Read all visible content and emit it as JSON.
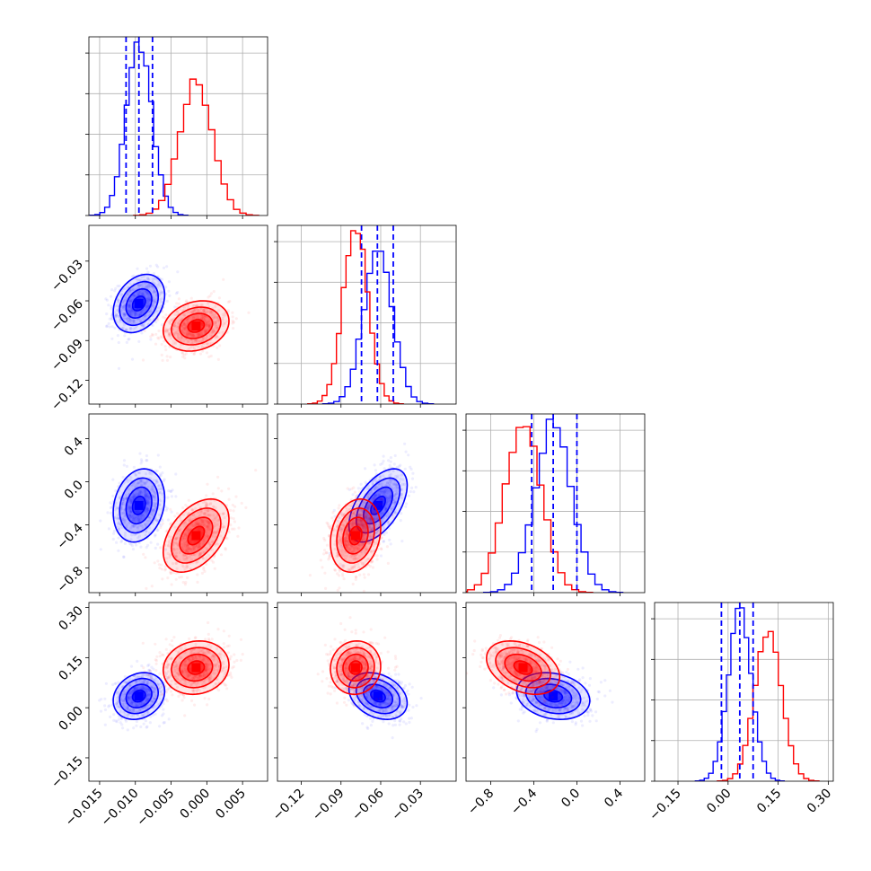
{
  "chart_data": {
    "type": "corner",
    "colors": {
      "series_a": "#0000ff",
      "series_b": "#ff0000"
    },
    "grid": true,
    "series": [
      {
        "color": "#0000ff",
        "means": [
          -0.0095,
          -0.062,
          -0.22,
          0.035
        ],
        "sds": [
          0.0018,
          0.011,
          0.17,
          0.035
        ]
      },
      {
        "color": "#ff0000",
        "means": [
          -0.0015,
          -0.079,
          -0.5,
          0.12
        ],
        "sds": [
          0.0023,
          0.0095,
          0.17,
          0.04
        ]
      }
    ],
    "correlations": {
      "series_a": {
        "1_0": 0.3,
        "2_0": 0.2,
        "2_1": 0.55,
        "3_0": 0.2,
        "3_1": -0.3,
        "3_2": -0.2
      },
      "series_b": {
        "1_0": 0.2,
        "2_0": 0.45,
        "2_1": 0.2,
        "3_0": 0.1,
        "3_1": 0.05,
        "3_2": -0.35
      }
    },
    "quantile_lines": {
      "color": "#0000ff",
      "values": [
        [
          -0.0113,
          -0.0095,
          -0.0076
        ],
        [
          -0.0745,
          -0.0625,
          -0.0505
        ],
        [
          -0.42,
          -0.22,
          0.0
        ],
        [
          -0.02,
          0.035,
          0.075
        ]
      ]
    },
    "axis_ranges": [
      [
        -0.0165,
        0.0085
      ],
      [
        -0.138,
        -0.003
      ],
      [
        -1.03,
        0.63
      ],
      [
        -0.22,
        0.315
      ]
    ],
    "ticks": [
      {
        "values": [
          -0.015,
          -0.01,
          -0.005,
          0.0,
          0.005
        ],
        "labels": [
          "−0.015",
          "−0.010",
          "−0.005",
          "0.000",
          "0.005"
        ]
      },
      {
        "values": [
          -0.12,
          -0.09,
          -0.06,
          -0.03
        ],
        "labels": [
          "−0.12",
          "−0.09",
          "−0.06",
          "−0.03"
        ]
      },
      {
        "values": [
          -0.8,
          -0.4,
          0.0,
          0.4
        ],
        "labels": [
          "−0.8",
          "−0.4",
          "0.0",
          "0.4"
        ]
      },
      {
        "values": [
          -0.15,
          0.0,
          0.15,
          0.3
        ],
        "labels": [
          "−0.15",
          "0.00",
          "0.15",
          "0.30"
        ]
      }
    ],
    "hist_bins": 20
  }
}
